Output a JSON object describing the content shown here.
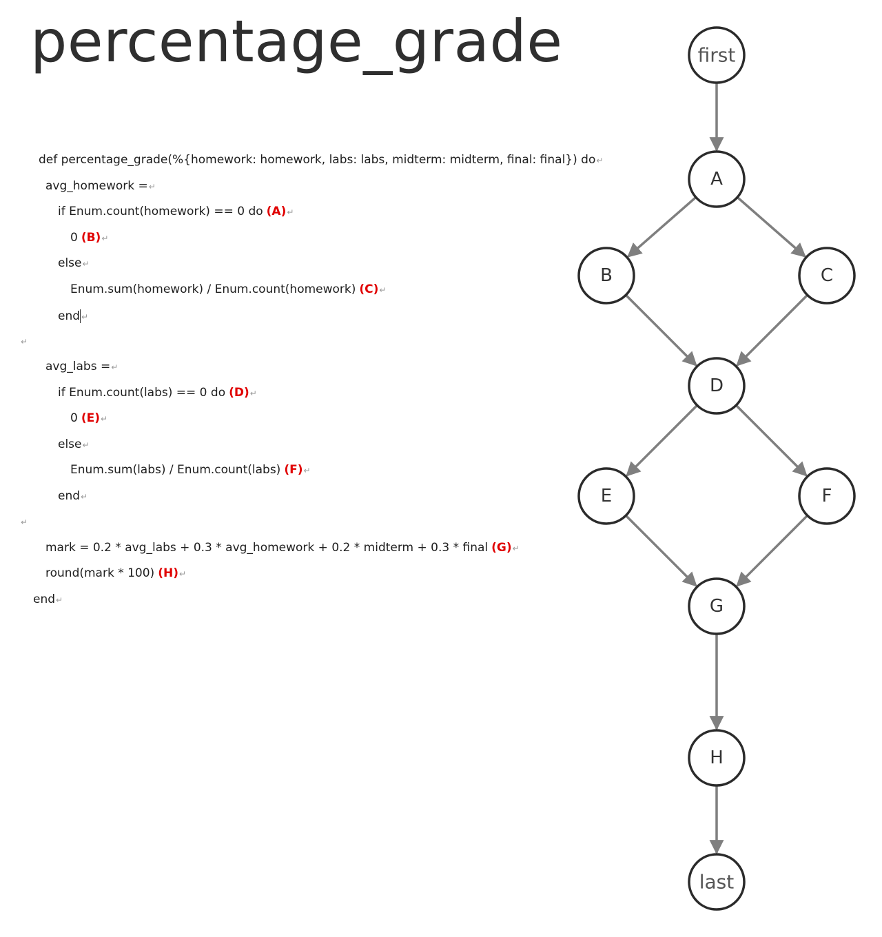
{
  "title": "percentage_grade",
  "code": {
    "lines": [
      {
        "text": "def percentage_grade(%{homework: homework, labs: labs, midterm: midterm, final: final}) do",
        "tag": ""
      },
      {
        "text": "avg_homework =",
        "tag": ""
      },
      {
        "text": "if Enum.count(homework) == 0 do",
        "tag": "(A)"
      },
      {
        "text": "0",
        "tag": "(B)"
      },
      {
        "text": "else",
        "tag": ""
      },
      {
        "text": "Enum.sum(homework) / Enum.count(homework)",
        "tag": "(C)"
      },
      {
        "text": "end",
        "tag": ""
      },
      {
        "text": "avg_labs =",
        "tag": ""
      },
      {
        "text": "if Enum.count(labs) == 0 do",
        "tag": "(D)"
      },
      {
        "text": "0",
        "tag": "(E)"
      },
      {
        "text": "else",
        "tag": ""
      },
      {
        "text": "Enum.sum(labs) / Enum.count(labs)",
        "tag": "(F)"
      },
      {
        "text": "end",
        "tag": ""
      },
      {
        "text": "mark = 0.2 * avg_labs + 0.3 * avg_homework + 0.2 * midterm + 0.3 * final",
        "tag": "(G)"
      },
      {
        "text": "round(mark * 100)",
        "tag": "(H)"
      },
      {
        "text": "end",
        "tag": ""
      }
    ],
    "paragraph_mark": "↵"
  },
  "graph": {
    "nodes": [
      {
        "id": "first",
        "label": "first"
      },
      {
        "id": "A",
        "label": "A"
      },
      {
        "id": "B",
        "label": "B"
      },
      {
        "id": "C",
        "label": "C"
      },
      {
        "id": "D",
        "label": "D"
      },
      {
        "id": "E",
        "label": "E"
      },
      {
        "id": "F",
        "label": "F"
      },
      {
        "id": "G",
        "label": "G"
      },
      {
        "id": "H",
        "label": "H"
      },
      {
        "id": "last",
        "label": "last"
      }
    ],
    "edges": [
      {
        "from": "first",
        "to": "A"
      },
      {
        "from": "A",
        "to": "B"
      },
      {
        "from": "A",
        "to": "C"
      },
      {
        "from": "B",
        "to": "D"
      },
      {
        "from": "C",
        "to": "D"
      },
      {
        "from": "D",
        "to": "E"
      },
      {
        "from": "D",
        "to": "F"
      },
      {
        "from": "E",
        "to": "G"
      },
      {
        "from": "F",
        "to": "G"
      },
      {
        "from": "G",
        "to": "H"
      },
      {
        "from": "H",
        "to": "last"
      }
    ]
  }
}
